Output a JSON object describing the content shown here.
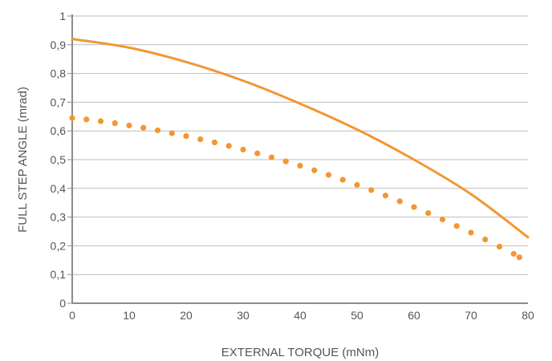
{
  "chart_data": {
    "type": "line",
    "xlabel": "EXTERNAL TORQUE (mNm)",
    "ylabel": "FULL STEP ANGLE (mrad)",
    "xlim": [
      0,
      80
    ],
    "ylim": [
      0,
      1
    ],
    "x_ticks": [
      0,
      10,
      20,
      30,
      40,
      50,
      60,
      70,
      80
    ],
    "x_tick_labels": [
      "0",
      "10",
      "20",
      "30",
      "40",
      "50",
      "60",
      "70",
      "80"
    ],
    "y_ticks": [
      0,
      0.1,
      0.2,
      0.3,
      0.4,
      0.5,
      0.6,
      0.7,
      0.8,
      0.9,
      1
    ],
    "y_tick_labels": [
      "0",
      "0,1",
      "0,2",
      "0,3",
      "0,4",
      "0,5",
      "0,6",
      "0,7",
      "0,8",
      "0,9",
      "1"
    ],
    "grid": "horizontal",
    "colors": {
      "series": "#f39632",
      "grid": "#bcbcbc",
      "axis": "#8c8c8c",
      "text": "#555555"
    },
    "series": [
      {
        "style": "solid",
        "x": [
          0,
          10,
          20,
          30,
          40,
          50,
          60,
          70,
          80
        ],
        "y": [
          0.92,
          0.89,
          0.84,
          0.775,
          0.695,
          0.605,
          0.5,
          0.38,
          0.23
        ]
      },
      {
        "style": "dotted",
        "x": [
          0,
          2.5,
          5,
          7.5,
          10,
          12.5,
          15,
          17.5,
          20,
          22.5,
          25,
          27.5,
          30,
          32.5,
          35,
          37.5,
          40,
          42.5,
          45,
          47.5,
          50,
          52.5,
          55,
          57.5,
          60,
          62.5,
          65,
          67.5,
          70,
          72.5,
          75,
          77.5,
          78.5
        ],
        "y": [
          0.645,
          0.64,
          0.634,
          0.627,
          0.619,
          0.611,
          0.602,
          0.592,
          0.582,
          0.571,
          0.56,
          0.548,
          0.535,
          0.522,
          0.508,
          0.494,
          0.479,
          0.463,
          0.447,
          0.43,
          0.412,
          0.394,
          0.375,
          0.355,
          0.335,
          0.314,
          0.292,
          0.269,
          0.246,
          0.222,
          0.197,
          0.172,
          0.16
        ]
      }
    ]
  }
}
